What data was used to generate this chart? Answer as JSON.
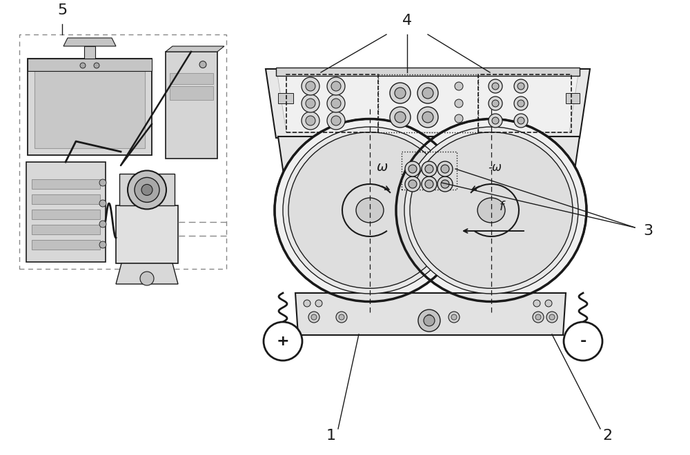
{
  "bg_color": "#ffffff",
  "line_color": "#1a1a1a",
  "gray1": "#f2f2f2",
  "gray2": "#e0e0e0",
  "gray3": "#c8c8c8",
  "gray4": "#b0b0b0",
  "label_1": "1",
  "label_2": "2",
  "label_3": "3",
  "label_4": "4",
  "label_5": "5",
  "label_omega": "ω",
  "label_neg_omega": "-ω",
  "label_f": "f",
  "label_plus": "+",
  "label_minus": "-",
  "figsize": [
    10.0,
    6.6
  ],
  "dpi": 100
}
